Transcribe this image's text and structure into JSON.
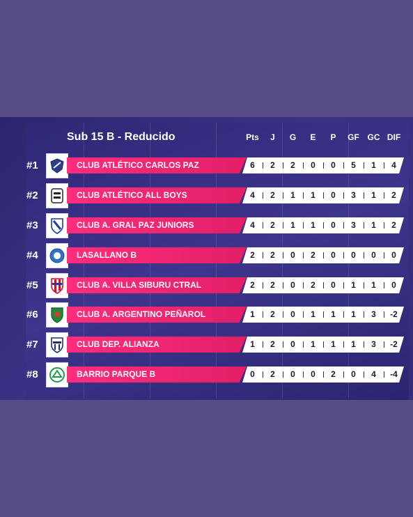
{
  "title": "Sub 15 B - Reducido",
  "columns": [
    "Pts",
    "J",
    "G",
    "E",
    "P",
    "GF",
    "GC",
    "DIF"
  ],
  "colors": {
    "name_bar": "#e8226c",
    "stats_bar": "#ffffff",
    "panel": "#2f2878",
    "page": "#574c88"
  },
  "rows": [
    {
      "rank": "#1",
      "team": "CLUB ATLÉTICO CARLOS PAZ",
      "logo": "carlos-paz-crest-icon",
      "stats": [
        "6",
        "2",
        "2",
        "0",
        "0",
        "5",
        "1",
        "4"
      ]
    },
    {
      "rank": "#2",
      "team": "CLUB ATLÉTICO ALL BOYS",
      "logo": "all-boys-crest-icon",
      "stats": [
        "4",
        "2",
        "1",
        "1",
        "0",
        "3",
        "1",
        "2"
      ]
    },
    {
      "rank": "#3",
      "team": "CLUB A. GRAL PAZ JUNIORS",
      "logo": "gral-paz-juniors-crest-icon",
      "stats": [
        "4",
        "2",
        "1",
        "1",
        "0",
        "3",
        "1",
        "2"
      ]
    },
    {
      "rank": "#4",
      "team": "LASALLANO B",
      "logo": "lasallano-crest-icon",
      "stats": [
        "2",
        "2",
        "0",
        "2",
        "0",
        "0",
        "0",
        "0"
      ]
    },
    {
      "rank": "#5",
      "team": "CLUB A. VILLA SIBURU CTRAL",
      "logo": "villa-siburu-crest-icon",
      "stats": [
        "2",
        "2",
        "0",
        "2",
        "0",
        "1",
        "1",
        "0"
      ]
    },
    {
      "rank": "#6",
      "team": "CLUB A. ARGENTINO PEÑAROL",
      "logo": "argentino-penarol-crest-icon",
      "stats": [
        "1",
        "2",
        "0",
        "1",
        "1",
        "1",
        "3",
        "-2"
      ]
    },
    {
      "rank": "#7",
      "team": "CLUB DEP. ALIANZA",
      "logo": "alianza-crest-icon",
      "stats": [
        "1",
        "2",
        "0",
        "1",
        "1",
        "1",
        "3",
        "-2"
      ]
    },
    {
      "rank": "#8",
      "team": "BARRIO PARQUE B",
      "logo": "barrio-parque-crest-icon",
      "stats": [
        "0",
        "2",
        "0",
        "0",
        "2",
        "0",
        "4",
        "-4"
      ]
    }
  ]
}
